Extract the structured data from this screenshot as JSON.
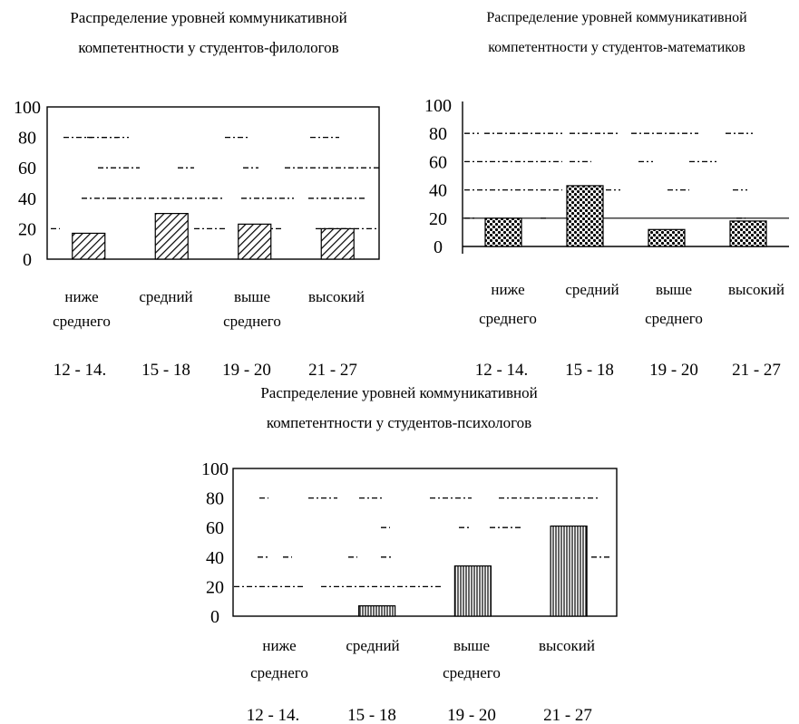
{
  "chart_data": [
    {
      "type": "bar",
      "title": [
        "Распределение уровней коммуникативной",
        "компетентности у студентов-филологов"
      ],
      "ylim": [
        0,
        100
      ],
      "yticks": [
        "100",
        "80",
        "60",
        "40",
        "20",
        "0"
      ],
      "categories": [
        [
          "ниже",
          "среднего"
        ],
        [
          "средний"
        ],
        [
          "выше",
          "среднего"
        ],
        [
          "высокий"
        ]
      ],
      "ranges": [
        "12 - 14.",
        "15 - 18",
        "19 - 20",
        "21 - 27"
      ],
      "values": [
        17,
        30,
        23,
        20
      ],
      "pattern": "diagonal-hatch"
    },
    {
      "type": "bar",
      "title": [
        "Распределение уровней коммуникативной",
        "компетентности у студентов-математиков"
      ],
      "ylim": [
        0,
        100
      ],
      "yticks": [
        "100",
        "80",
        "60",
        "40",
        "20",
        "0"
      ],
      "categories": [
        [
          "ниже",
          "среднего"
        ],
        [
          "средний"
        ],
        [
          "выше",
          "среднего"
        ],
        [
          "высокий"
        ]
      ],
      "ranges": [
        "12 - 14.",
        "15 - 18",
        "19 - 20",
        "21 - 27"
      ],
      "values": [
        20,
        43,
        12,
        18
      ],
      "pattern": "checker"
    },
    {
      "type": "bar",
      "title": [
        "Распределение уровней коммуникативной",
        "компетентности у студентов-психологов"
      ],
      "ylim": [
        0,
        100
      ],
      "yticks": [
        "100",
        "80",
        "60",
        "40",
        "20",
        "0"
      ],
      "categories": [
        [
          "ниже",
          "среднего"
        ],
        [
          "средний"
        ],
        [
          "выше",
          "среднего"
        ],
        [
          "высокий"
        ]
      ],
      "ranges": [
        "12 - 14.",
        "15 - 18",
        "19 - 20",
        "21 - 27"
      ],
      "values": [
        0,
        7,
        34,
        61
      ],
      "pattern": "vertical-stripes"
    }
  ]
}
